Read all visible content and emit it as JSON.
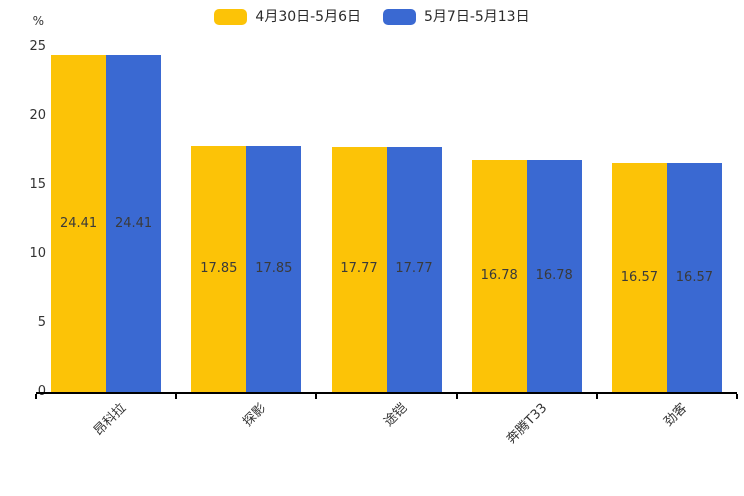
{
  "chart_data": {
    "type": "bar",
    "title": "",
    "categories": [
      "昂科拉",
      "探影",
      "途铠",
      "奔腾T33",
      "劲客"
    ],
    "series": [
      {
        "name": "4月30日-5月6日",
        "color": "#FCC307",
        "values": [
          24.41,
          17.85,
          17.77,
          16.78,
          16.57
        ]
      },
      {
        "name": "5月7日-5月13日",
        "color": "#3A69D2",
        "values": [
          24.41,
          17.85,
          17.77,
          16.78,
          16.57
        ]
      }
    ],
    "xlabel": "",
    "ylabel": "%",
    "ylim": [
      0,
      25
    ],
    "yticks": [
      0,
      5,
      10,
      15,
      20,
      25
    ],
    "grid": false,
    "legend_position": "top",
    "value_labels": "inside-center",
    "x_tick_label_rotation": 45
  },
  "colors": {
    "background": "#ffffff",
    "axis": "#000000",
    "tick_text": "#333333",
    "value_text": "#3a3a3a"
  }
}
